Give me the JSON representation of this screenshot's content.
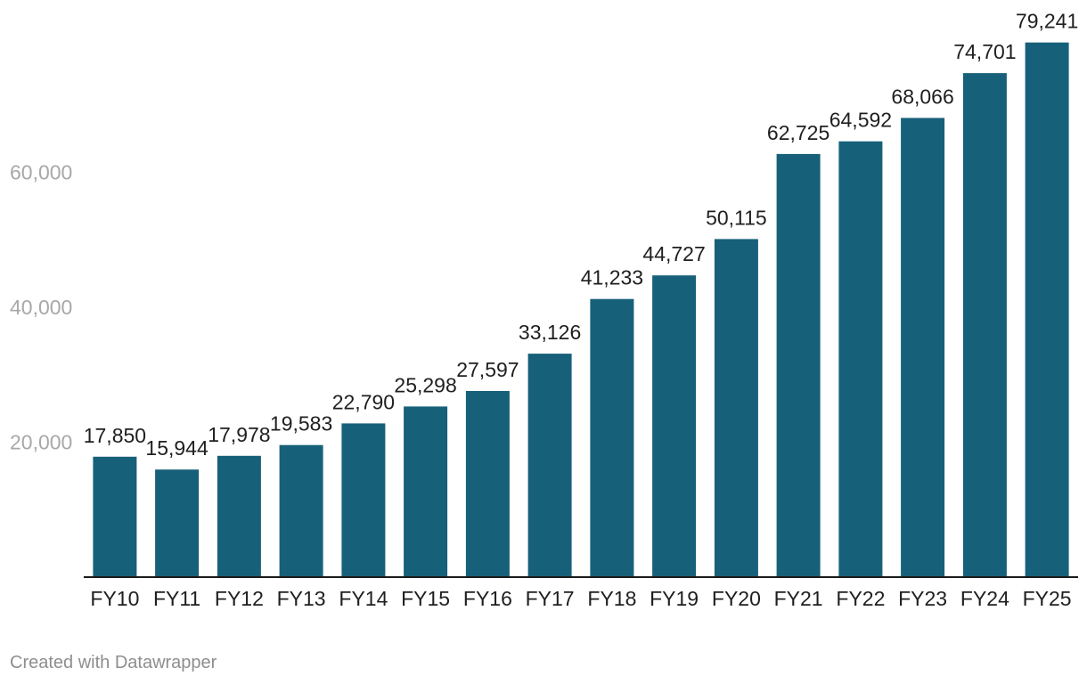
{
  "chart_data": {
    "type": "bar",
    "title": "",
    "xlabel": "",
    "ylabel": "",
    "categories": [
      "FY10",
      "FY11",
      "FY12",
      "FY13",
      "FY14",
      "FY15",
      "FY16",
      "FY17",
      "FY18",
      "FY19",
      "FY20",
      "FY21",
      "FY22",
      "FY23",
      "FY24",
      "FY25"
    ],
    "values": [
      17850,
      15944,
      17978,
      19583,
      22790,
      25298,
      27597,
      33126,
      41233,
      44727,
      50115,
      62725,
      64592,
      68066,
      74701,
      79241
    ],
    "value_labels": [
      "17,850",
      "15,944",
      "17,978",
      "19,583",
      "22,790",
      "25,298",
      "27,597",
      "33,126",
      "41,233",
      "44,727",
      "50,115",
      "62,725",
      "64,592",
      "68,066",
      "74,701",
      "79,241"
    ],
    "yticks": [
      20000,
      40000,
      60000
    ],
    "ytick_labels": [
      "20,000",
      "40,000",
      "60,000"
    ],
    "ylim": [
      0,
      80000
    ],
    "grid": false,
    "bar_color": "#17607a"
  },
  "footer": {
    "credit": "Created with Datawrapper"
  }
}
